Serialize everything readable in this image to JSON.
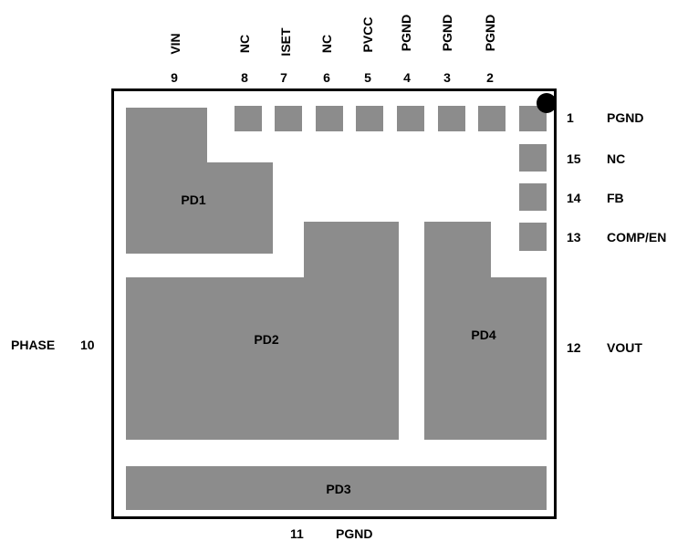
{
  "top_pins": [
    {
      "name": "VIN",
      "num": "9"
    },
    {
      "name": "NC",
      "num": "8"
    },
    {
      "name": "ISET",
      "num": "7"
    },
    {
      "name": "NC",
      "num": "6"
    },
    {
      "name": "PVCC",
      "num": "5"
    },
    {
      "name": "PGND",
      "num": "4"
    },
    {
      "name": "PGND",
      "num": "3"
    },
    {
      "name": "PGND",
      "num": "2"
    }
  ],
  "right_pins": [
    {
      "num": "1",
      "name": "PGND"
    },
    {
      "num": "15",
      "name": "NC"
    },
    {
      "num": "14",
      "name": "FB"
    },
    {
      "num": "13",
      "name": "COMP/EN"
    },
    {
      "num": "12",
      "name": "VOUT"
    }
  ],
  "left_pin": {
    "name": "PHASE",
    "num": "10"
  },
  "bottom_pin": {
    "num": "11",
    "name": "PGND"
  },
  "pads": {
    "pd1": "PD1",
    "pd2": "PD2",
    "pd3": "PD3",
    "pd4": "PD4"
  }
}
